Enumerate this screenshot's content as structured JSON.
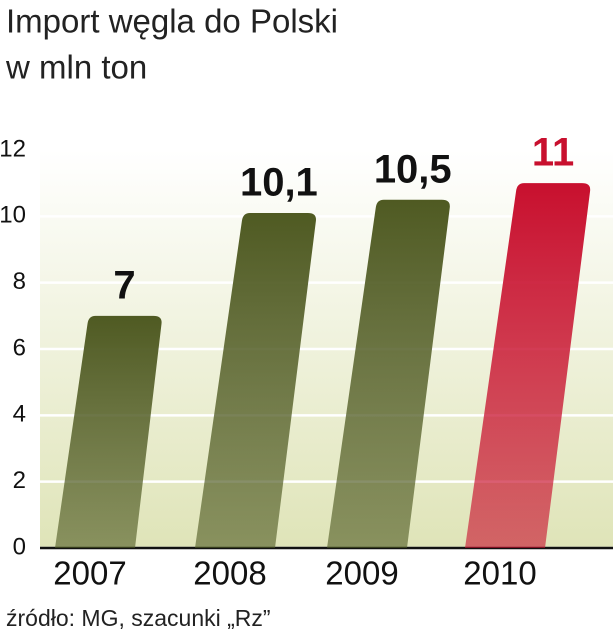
{
  "chart_data": {
    "type": "bar",
    "title": "Import węgla do Polski",
    "subtitle": "w mln ton",
    "source": "źródło: MG, szacunki „Rz”",
    "categories": [
      "2007",
      "2008",
      "2009",
      "2010"
    ],
    "values": [
      7,
      10.1,
      10.5,
      11
    ],
    "value_labels": [
      "7",
      "10,1",
      "10,5",
      "11"
    ],
    "colors": [
      "#4f5a22",
      "#4f5a22",
      "#4f5a22",
      "#c8102e"
    ],
    "value_label_colors": [
      "#111111",
      "#111111",
      "#111111",
      "#c8102e"
    ],
    "ylim": [
      0,
      12
    ],
    "yticks": [
      0,
      2,
      4,
      6,
      8,
      10,
      12
    ],
    "grid": true
  }
}
